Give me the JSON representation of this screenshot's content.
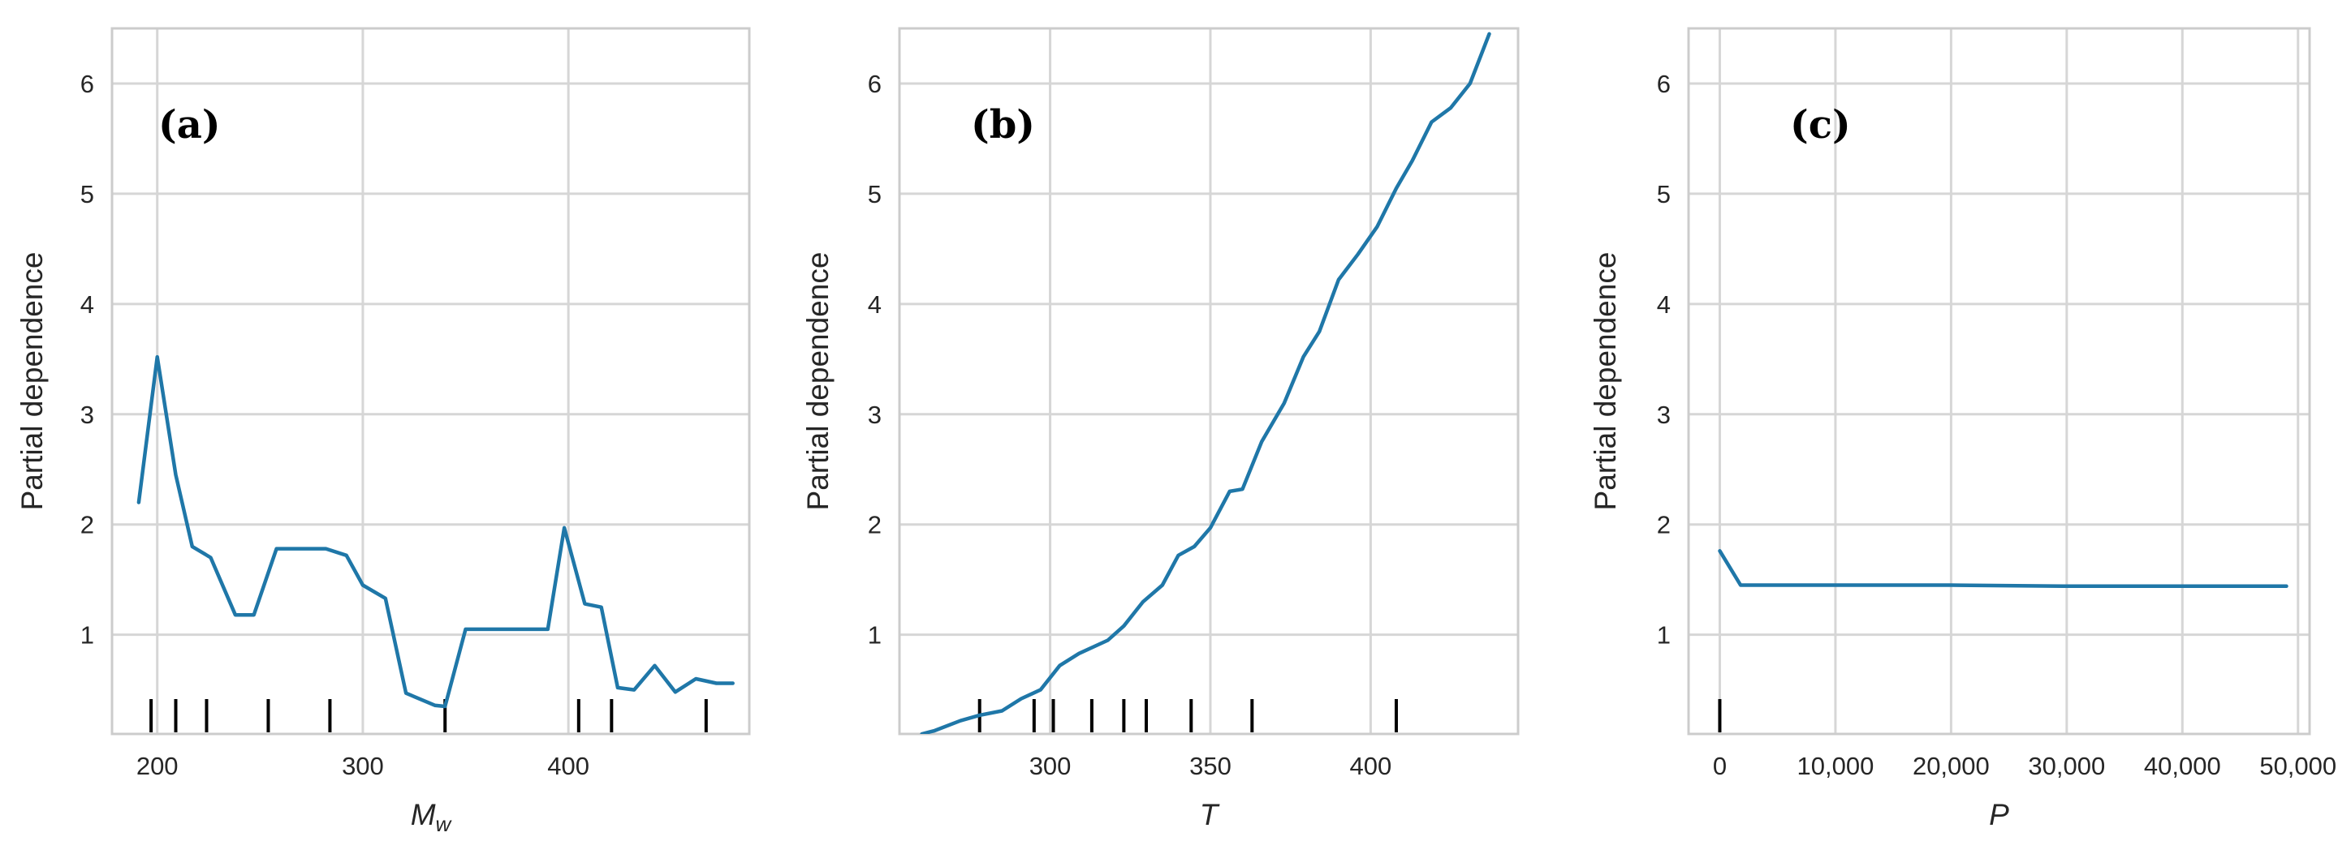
{
  "chart_data": [
    {
      "type": "line",
      "panel_label": "(a)",
      "xlabel": "M",
      "xlabel_sub": "w",
      "xlabel_italic": true,
      "ylabel": "Partial dependence",
      "xlim": [
        178,
        488
      ],
      "ylim": [
        0.1,
        6.5
      ],
      "xticks": [
        200,
        300,
        400
      ],
      "xtick_labels": [
        "200",
        "300",
        "400"
      ],
      "yticks": [
        1,
        2,
        3,
        4,
        5,
        6
      ],
      "ytick_labels": [
        "1",
        "2",
        "3",
        "4",
        "5",
        "6"
      ],
      "grid": true,
      "line_color": "#1f77a8",
      "x": [
        191,
        200,
        209,
        217,
        226,
        238,
        247,
        258,
        270,
        282,
        292,
        300,
        311,
        321,
        335,
        340,
        350,
        360,
        370,
        380,
        390,
        398,
        408,
        416,
        424,
        432,
        442,
        452,
        462,
        472,
        480
      ],
      "y": [
        2.2,
        3.52,
        2.45,
        1.8,
        1.7,
        1.18,
        1.18,
        1.78,
        1.78,
        1.78,
        1.72,
        1.45,
        1.33,
        0.47,
        0.36,
        0.35,
        1.05,
        1.05,
        1.05,
        1.05,
        1.05,
        1.97,
        1.28,
        1.25,
        0.52,
        0.5,
        0.72,
        0.48,
        0.6,
        0.56,
        0.56
      ],
      "rug": [
        197,
        209,
        224,
        254,
        284,
        340,
        405,
        421,
        467
      ]
    },
    {
      "type": "line",
      "panel_label": "(b)",
      "xlabel": "T",
      "xlabel_sub": "",
      "xlabel_italic": true,
      "ylabel": "Partial dependence",
      "xlim": [
        253,
        446
      ],
      "ylim": [
        0.1,
        6.5
      ],
      "xticks": [
        300,
        350,
        400
      ],
      "xtick_labels": [
        "300",
        "350",
        "400"
      ],
      "yticks": [
        1,
        2,
        3,
        4,
        5,
        6
      ],
      "ytick_labels": [
        "1",
        "2",
        "3",
        "4",
        "5",
        "6"
      ],
      "grid": true,
      "line_color": "#1f77a8",
      "x": [
        260,
        264,
        272,
        278,
        285,
        291,
        297,
        303,
        309,
        318,
        323,
        329,
        335,
        340,
        345,
        350,
        356,
        360,
        366,
        373,
        379,
        384,
        390,
        396,
        402,
        408,
        413,
        419,
        425,
        431,
        437
      ],
      "y": [
        0.1,
        0.13,
        0.22,
        0.27,
        0.31,
        0.42,
        0.5,
        0.72,
        0.83,
        0.95,
        1.08,
        1.3,
        1.45,
        1.72,
        1.8,
        1.97,
        2.3,
        2.32,
        2.75,
        3.1,
        3.52,
        3.75,
        4.22,
        4.45,
        4.7,
        5.05,
        5.3,
        5.65,
        5.78,
        6.0,
        6.45
      ],
      "rug": [
        278,
        295,
        301,
        313,
        323,
        330,
        344,
        363,
        408
      ]
    },
    {
      "type": "line",
      "panel_label": "(c)",
      "xlabel": "P",
      "xlabel_sub": "",
      "xlabel_italic": true,
      "ylabel": "Partial dependence",
      "xlim": [
        -2700,
        51000
      ],
      "ylim": [
        0.1,
        6.5
      ],
      "xticks": [
        0,
        10000,
        20000,
        30000,
        40000,
        50000
      ],
      "xtick_labels": [
        "0",
        "10,000",
        "20,000",
        "30,000",
        "40,000",
        "50,000"
      ],
      "yticks": [
        1,
        2,
        3,
        4,
        5,
        6
      ],
      "ytick_labels": [
        "1",
        "2",
        "3",
        "4",
        "5",
        "6"
      ],
      "grid": true,
      "line_color": "#1f77a8",
      "x": [
        0,
        1800,
        10000,
        20000,
        30000,
        40000,
        49000
      ],
      "y": [
        1.76,
        1.45,
        1.45,
        1.45,
        1.44,
        1.44,
        1.44
      ],
      "rug": [
        0
      ]
    }
  ]
}
